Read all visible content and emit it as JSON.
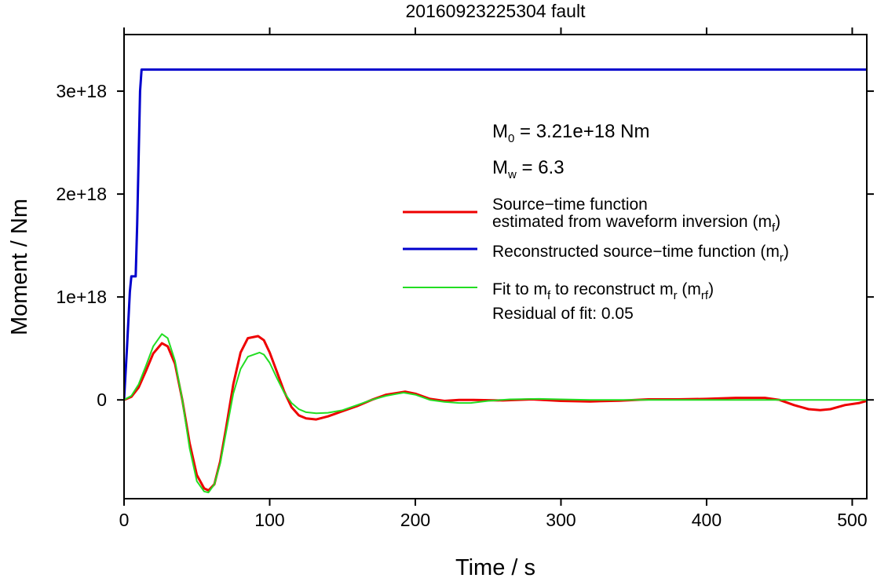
{
  "chart_data": {
    "type": "line",
    "title": "20160923225304 fault",
    "xlabel": "Time / s",
    "ylabel": "Moment / Nm",
    "xlim": [
      0,
      510
    ],
    "ylim": [
      -9.6e+17,
      3.55e+18
    ],
    "x_ticks": [
      {
        "value": 0,
        "label": "0"
      },
      {
        "value": 100,
        "label": "100"
      },
      {
        "value": 200,
        "label": "200"
      },
      {
        "value": 300,
        "label": "300"
      },
      {
        "value": 400,
        "label": "400"
      },
      {
        "value": 500,
        "label": "500"
      }
    ],
    "y_ticks": [
      {
        "value": 0,
        "label": "0"
      },
      {
        "value": 1e+18,
        "label": "1e+18"
      },
      {
        "value": 2e+18,
        "label": "2e+18"
      },
      {
        "value": 3e+18,
        "label": "3e+18"
      }
    ],
    "grid": false,
    "legend_position": "right",
    "annotations": {
      "m0": {
        "symbol": "M",
        "subscript": "0",
        "text": " = 3.21e+18 Nm"
      },
      "mw": {
        "symbol": "M",
        "subscript": "w",
        "text": " = 6.3"
      },
      "residual": "Residual of fit: 0.05"
    },
    "series": [
      {
        "name": "Source−time function estimated from waveform inversion (m_f)",
        "legend_lines": [
          "Source−time function",
          "estimated from waveform inversion (m",
          "f",
          ")"
        ],
        "color": "#ee0000",
        "x": [
          0,
          5,
          10,
          15,
          20,
          26,
          30,
          35,
          40,
          45,
          50,
          55,
          58,
          62,
          66,
          70,
          75,
          80,
          85,
          92,
          96,
          100,
          105,
          110,
          115,
          120,
          125,
          132,
          140,
          150,
          160,
          170,
          180,
          193,
          200,
          210,
          220,
          230,
          240,
          260,
          280,
          300,
          320,
          340,
          360,
          380,
          400,
          420,
          440,
          450,
          460,
          470,
          478,
          485,
          495,
          505,
          510
        ],
        "y": [
          0,
          3e+16,
          1.2e+17,
          2.8e+17,
          4.5e+17,
          5.5e+17,
          5.2e+17,
          3.5e+17,
          0,
          -4.2e+17,
          -7.3e+17,
          -8.6e+17,
          -8.8e+17,
          -8.2e+17,
          -6e+17,
          -2.8e+17,
          1.5e+17,
          4.6e+17,
          6e+17,
          6.2e+17,
          5.8e+17,
          4.6e+17,
          2.7e+17,
          8e+16,
          -7e+16,
          -1.5e+17,
          -1.8e+17,
          -1.9e+17,
          -1.6e+17,
          -1.1e+17,
          -6e+16,
          0,
          5e+16,
          8e+16,
          6e+16,
          1e+16,
          -1e+16,
          0,
          0,
          -5000000000000000.0,
          5000000000000000.0,
          -1e+16,
          -1.5e+16,
          -8000000000000000.0,
          5000000000000000.0,
          5000000000000000.0,
          1e+16,
          2e+16,
          2e+16,
          0,
          -5e+16,
          -9e+16,
          -1e+17,
          -9e+16,
          -5e+16,
          -3e+16,
          -1e+16
        ]
      },
      {
        "name": "Reconstructed source−time function (m_r)",
        "legend_lines": [
          "Reconstructed source−time function (m",
          "r",
          ")"
        ],
        "color": "#0000cc",
        "x": [
          0,
          2,
          4,
          5,
          8,
          9,
          11,
          12,
          510
        ],
        "y": [
          0,
          5e+17,
          1.05e+18,
          1.2e+18,
          1.2e+18,
          1.7e+18,
          3e+18,
          3.21e+18,
          3.21e+18
        ]
      },
      {
        "name": "Fit to m_f to reconstruct m_r (m_rf)",
        "legend_lines": [
          "Fit to m",
          "f",
          " to reconstruct m",
          "r",
          " (m",
          "rf",
          ")"
        ],
        "color": "#22dd22",
        "x": [
          0,
          5,
          10,
          15,
          20,
          26,
          30,
          35,
          40,
          45,
          50,
          55,
          58,
          62,
          66,
          70,
          75,
          80,
          85,
          93,
          96,
          100,
          105,
          110,
          115,
          120,
          125,
          132,
          140,
          150,
          160,
          170,
          180,
          192,
          200,
          210,
          220,
          230,
          238,
          250,
          265,
          285,
          300,
          320,
          350,
          400,
          450,
          510
        ],
        "y": [
          0,
          4e+16,
          1.5e+17,
          3.3e+17,
          5.2e+17,
          6.4e+17,
          6e+17,
          3.8e+17,
          0,
          -4.7e+17,
          -7.9e+17,
          -8.9e+17,
          -9e+17,
          -8.2e+17,
          -6.2e+17,
          -3.2e+17,
          6e+16,
          3e+17,
          4.2e+17,
          4.6e+17,
          4.4e+17,
          3.6e+17,
          2.1e+17,
          7e+16,
          -3e+16,
          -9e+16,
          -1.2e+17,
          -1.3e+17,
          -1.25e+17,
          -1e+17,
          -5e+16,
          0,
          4e+16,
          7e+16,
          5e+16,
          0,
          -2e+16,
          -3e+16,
          -3e+16,
          -1e+16,
          5000000000000000.0,
          1e+16,
          5000000000000000.0,
          0,
          0,
          0,
          0,
          0
        ]
      }
    ]
  }
}
